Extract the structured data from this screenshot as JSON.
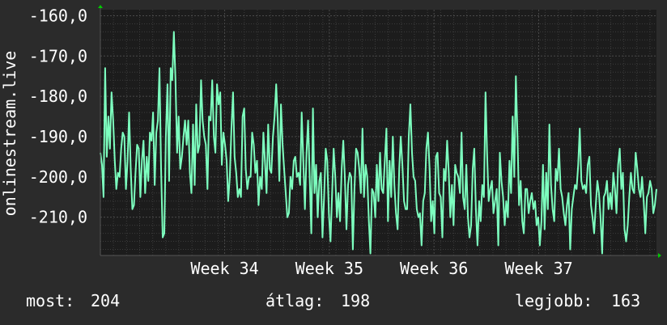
{
  "colors": {
    "background": "#2b2b2b",
    "plot_background": "#1c1c1c",
    "grid": "#3c3c3c",
    "line": "#7dffbf",
    "text": "#ffffff",
    "arrow": "#00cc00"
  },
  "footer": {
    "current_label": "most:",
    "current_value": "204",
    "average_label": "átlag:",
    "average_value": "198",
    "best_label": "legjobb:",
    "best_value": "163"
  },
  "chart_data": {
    "type": "line",
    "title": "",
    "ylabel": "onlinestream.live",
    "xlabel": "",
    "ylim": [
      -219.5,
      -158.5
    ],
    "xlim": [
      0,
      340
    ],
    "yticks": [
      -160,
      -170,
      -180,
      -190,
      -200,
      -210
    ],
    "ytick_labels": [
      "-160,0",
      "-170,0",
      "-180,0",
      "-190,0",
      "-200,0",
      "-210,0"
    ],
    "xticks": [
      {
        "label": "Week 34",
        "x": 76
      },
      {
        "label": "Week 35",
        "x": 140
      },
      {
        "label": "Week 36",
        "x": 204
      },
      {
        "label": "Week 37",
        "x": 268
      }
    ],
    "grid": true,
    "series": [
      {
        "values": [
          -194,
          -197,
          -205,
          -173,
          -195,
          -185,
          -193,
          -179,
          -186,
          -196,
          -203,
          -199,
          -200,
          -193,
          -189,
          -190,
          -203,
          -196,
          -184,
          -198,
          -208,
          -207,
          -199,
          -192,
          -193,
          -205,
          -196,
          -191,
          -204,
          -195,
          -201,
          -189,
          -191,
          -184,
          -202,
          -189,
          -186,
          -173,
          -198,
          -215,
          -214,
          -190,
          -177,
          -201,
          -173,
          -176,
          -164,
          -176,
          -194,
          -185,
          -198,
          -195,
          -190,
          -186,
          -192,
          -186,
          -199,
          -204,
          -187,
          -202,
          -182,
          -194,
          -192,
          -176,
          -186,
          -190,
          -192,
          -203,
          -185,
          -186,
          -176,
          -190,
          -194,
          -177,
          -182,
          -179,
          -197,
          -189,
          -192,
          -196,
          -206,
          -200,
          -188,
          -179,
          -195,
          -199,
          -205,
          -203,
          -205,
          -185,
          -183,
          -198,
          -203,
          -200,
          -200,
          -189,
          -192,
          -199,
          -196,
          -207,
          -200,
          -203,
          -189,
          -196,
          -204,
          -187,
          -198,
          -199,
          -190,
          -185,
          -177,
          -186,
          -201,
          -182,
          -192,
          -198,
          -204,
          -210,
          -209,
          -200,
          -203,
          -196,
          -195,
          -200,
          -199,
          -202,
          -184,
          -196,
          -208,
          -194,
          -186,
          -200,
          -214,
          -183,
          -204,
          -197,
          -210,
          -201,
          -199,
          -215,
          -205,
          -193,
          -196,
          -209,
          -216,
          -204,
          -193,
          -200,
          -210,
          -204,
          -211,
          -198,
          -191,
          -200,
          -213,
          -202,
          -199,
          -200,
          -218,
          -203,
          -193,
          -194,
          -198,
          -204,
          -188,
          -205,
          -197,
          -200,
          -211,
          -219,
          -203,
          -204,
          -210,
          -197,
          -206,
          -194,
          -203,
          -204,
          -196,
          -188,
          -211,
          -196,
          -205,
          -190,
          -202,
          -209,
          -213,
          -198,
          -190,
          -197,
          -206,
          -208,
          -208,
          -190,
          -182,
          -194,
          -200,
          -201,
          -208,
          -210,
          -209,
          -217,
          -206,
          -204,
          -193,
          -189,
          -198,
          -211,
          -206,
          -214,
          -195,
          -194,
          -204,
          -205,
          -215,
          -198,
          -201,
          -191,
          -199,
          -210,
          -202,
          -212,
          -197,
          -199,
          -200,
          -204,
          -189,
          -205,
          -208,
          -197,
          -210,
          -215,
          -212,
          -198,
          -193,
          -208,
          -217,
          -206,
          -211,
          -202,
          -205,
          -179,
          -194,
          -206,
          -203,
          -201,
          -209,
          -206,
          -203,
          -217,
          -194,
          -201,
          -205,
          -212,
          -206,
          -210,
          -196,
          -204,
          -185,
          -200,
          -175,
          -190,
          -207,
          -201,
          -211,
          -214,
          -203,
          -203,
          -209,
          -206,
          -204,
          -208,
          -206,
          -212,
          -210,
          -217,
          -211,
          -197,
          -213,
          -199,
          -208,
          -187,
          -202,
          -208,
          -211,
          -198,
          -201,
          -193,
          -203,
          -205,
          -209,
          -212,
          -207,
          -204,
          -218,
          -208,
          -205,
          -202,
          -203,
          -197,
          -188,
          -201,
          -203,
          -202,
          -204,
          -197,
          -195,
          -207,
          -210,
          -214,
          -207,
          -201,
          -204,
          -210,
          -219,
          -205,
          -204,
          -201,
          -208,
          -204,
          -208,
          -199,
          -203,
          -209,
          -197,
          -193,
          -203,
          -199,
          -213,
          -216,
          -212,
          -205,
          -199,
          -203,
          -204,
          -194,
          -198,
          -203,
          -205,
          -200,
          -206,
          -214,
          -205,
          -204,
          -201,
          -203,
          -209,
          -207,
          -203
        ]
      }
    ]
  }
}
